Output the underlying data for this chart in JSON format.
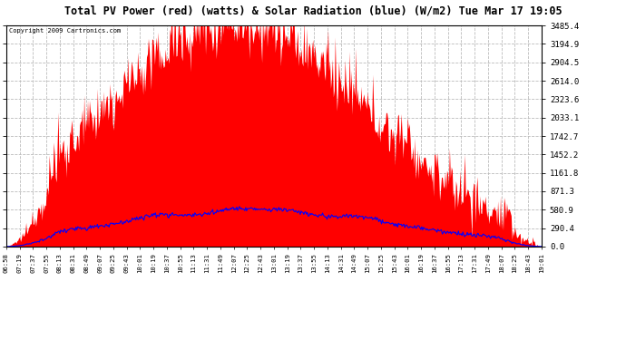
{
  "title": "Total PV Power (red) (watts) & Solar Radiation (blue) (W/m2) Tue Mar 17 19:05",
  "copyright": "Copyright 2009 Cartronics.com",
  "yticks": [
    0.0,
    290.4,
    580.9,
    871.3,
    1161.8,
    1452.2,
    1742.7,
    2033.1,
    2323.6,
    2614.0,
    2904.5,
    3194.9,
    3485.4
  ],
  "xtick_labels": [
    "06:58",
    "07:19",
    "07:37",
    "07:55",
    "08:13",
    "08:31",
    "08:49",
    "09:07",
    "09:25",
    "09:43",
    "10:01",
    "10:19",
    "10:37",
    "10:55",
    "11:13",
    "11:31",
    "11:49",
    "12:07",
    "12:25",
    "12:43",
    "13:01",
    "13:19",
    "13:37",
    "13:55",
    "14:13",
    "14:31",
    "14:49",
    "15:07",
    "15:25",
    "15:43",
    "16:01",
    "16:19",
    "16:37",
    "16:55",
    "17:13",
    "17:31",
    "17:49",
    "18:07",
    "18:25",
    "18:43",
    "19:01"
  ],
  "n_labels": 41,
  "bg_color": "#ffffff",
  "plot_bg_color": "#ffffff",
  "grid_color": "#bbbbbb",
  "red_color": "#ff0000",
  "blue_color": "#0000ff",
  "ymax": 3485.4,
  "sol_peak": 580.0,
  "pv_peak": 3485.4
}
